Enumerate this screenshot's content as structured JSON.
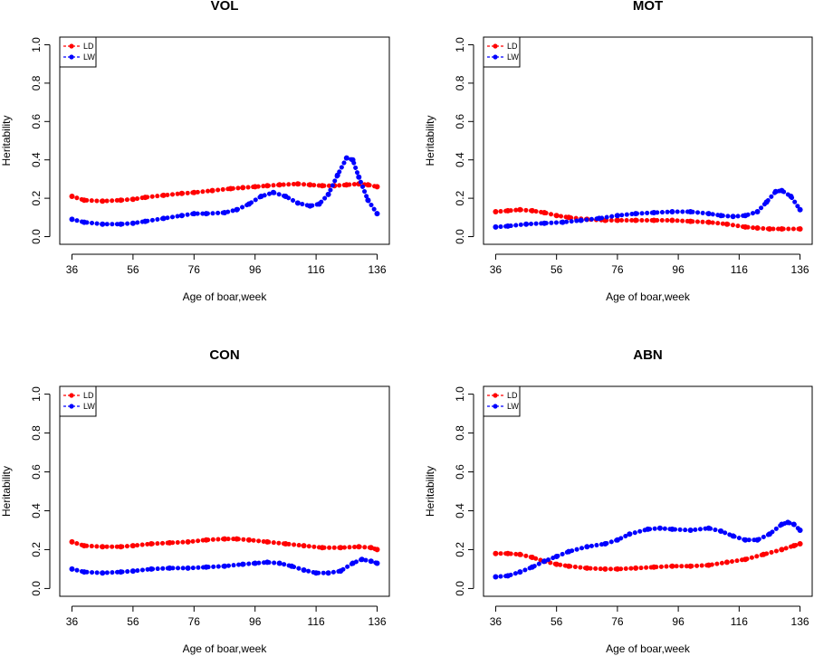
{
  "chart_data": [
    {
      "type": "line",
      "title": "VOL",
      "xlabel": "Age of boar,week",
      "ylabel": "Heritability",
      "xlim": [
        36,
        136
      ],
      "ylim": [
        0,
        1
      ],
      "xticks": [
        "36",
        "56",
        "76",
        "96",
        "116",
        "136"
      ],
      "yticks": [
        "0.0",
        "0.2",
        "0.4",
        "0.6",
        "0.8",
        "1.0"
      ],
      "legend": "top-left",
      "series": [
        {
          "name": "LD",
          "color": "#ff0000",
          "x": [
            36,
            40,
            46,
            52,
            56,
            60,
            66,
            72,
            76,
            82,
            88,
            92,
            96,
            100,
            104,
            110,
            114,
            118,
            122,
            126,
            130,
            133,
            136
          ],
          "y": [
            0.21,
            0.19,
            0.185,
            0.19,
            0.195,
            0.205,
            0.215,
            0.225,
            0.23,
            0.24,
            0.25,
            0.255,
            0.26,
            0.265,
            0.27,
            0.275,
            0.27,
            0.265,
            0.265,
            0.27,
            0.275,
            0.27,
            0.26
          ]
        },
        {
          "name": "LW",
          "color": "#0000ff",
          "x": [
            36,
            40,
            46,
            52,
            56,
            60,
            66,
            72,
            76,
            80,
            86,
            90,
            94,
            98,
            102,
            106,
            110,
            114,
            117,
            120,
            123,
            126,
            128,
            130,
            133,
            136
          ],
          "y": [
            0.09,
            0.075,
            0.065,
            0.065,
            0.07,
            0.08,
            0.095,
            0.11,
            0.12,
            0.12,
            0.125,
            0.14,
            0.17,
            0.21,
            0.23,
            0.21,
            0.175,
            0.16,
            0.17,
            0.22,
            0.32,
            0.41,
            0.4,
            0.31,
            0.19,
            0.12
          ]
        }
      ]
    },
    {
      "type": "line",
      "title": "MOT",
      "xlabel": "Age of boar,week",
      "ylabel": "Heritability",
      "xlim": [
        36,
        136
      ],
      "ylim": [
        0,
        1
      ],
      "xticks": [
        "36",
        "56",
        "76",
        "96",
        "116",
        "136"
      ],
      "yticks": [
        "0.0",
        "0.2",
        "0.4",
        "0.6",
        "0.8",
        "1.0"
      ],
      "legend": "top-left",
      "series": [
        {
          "name": "LD",
          "color": "#ff0000",
          "x": [
            36,
            40,
            44,
            48,
            52,
            56,
            60,
            66,
            72,
            76,
            82,
            88,
            94,
            100,
            106,
            112,
            118,
            122,
            126,
            130,
            136
          ],
          "y": [
            0.13,
            0.135,
            0.14,
            0.135,
            0.125,
            0.11,
            0.1,
            0.09,
            0.085,
            0.085,
            0.085,
            0.085,
            0.085,
            0.08,
            0.075,
            0.065,
            0.05,
            0.045,
            0.04,
            0.04,
            0.04
          ]
        },
        {
          "name": "LW",
          "color": "#0000ff",
          "x": [
            36,
            40,
            46,
            52,
            58,
            64,
            70,
            76,
            82,
            88,
            94,
            100,
            106,
            110,
            114,
            118,
            122,
            125,
            128,
            130,
            133,
            136
          ],
          "y": [
            0.05,
            0.055,
            0.065,
            0.07,
            0.075,
            0.085,
            0.095,
            0.11,
            0.12,
            0.125,
            0.13,
            0.13,
            0.12,
            0.11,
            0.105,
            0.11,
            0.13,
            0.18,
            0.235,
            0.24,
            0.21,
            0.14
          ]
        }
      ]
    },
    {
      "type": "line",
      "title": "CON",
      "xlabel": "Age of boar,week",
      "ylabel": "Heritability",
      "xlim": [
        36,
        136
      ],
      "ylim": [
        0,
        1
      ],
      "xticks": [
        "36",
        "56",
        "76",
        "96",
        "116",
        "136"
      ],
      "yticks": [
        "0.0",
        "0.2",
        "0.4",
        "0.6",
        "0.8",
        "1.0"
      ],
      "legend": "top-left",
      "series": [
        {
          "name": "LD",
          "color": "#ff0000",
          "x": [
            36,
            40,
            46,
            52,
            56,
            62,
            68,
            74,
            80,
            86,
            90,
            94,
            100,
            106,
            112,
            118,
            124,
            130,
            134,
            136
          ],
          "y": [
            0.24,
            0.22,
            0.215,
            0.215,
            0.22,
            0.23,
            0.235,
            0.24,
            0.25,
            0.255,
            0.255,
            0.25,
            0.24,
            0.23,
            0.22,
            0.21,
            0.21,
            0.215,
            0.21,
            0.2
          ]
        },
        {
          "name": "LW",
          "color": "#0000ff",
          "x": [
            36,
            40,
            46,
            52,
            56,
            62,
            68,
            74,
            80,
            86,
            92,
            96,
            100,
            104,
            108,
            112,
            116,
            120,
            124,
            128,
            131,
            134,
            136
          ],
          "y": [
            0.1,
            0.085,
            0.08,
            0.085,
            0.09,
            0.1,
            0.105,
            0.105,
            0.11,
            0.115,
            0.125,
            0.13,
            0.135,
            0.13,
            0.115,
            0.095,
            0.08,
            0.08,
            0.09,
            0.13,
            0.15,
            0.14,
            0.13
          ]
        }
      ]
    },
    {
      "type": "line",
      "title": "ABN",
      "xlabel": "Age of boar,week",
      "ylabel": "Heritability",
      "xlim": [
        36,
        136
      ],
      "ylim": [
        0,
        1
      ],
      "xticks": [
        "36",
        "56",
        "76",
        "96",
        "116",
        "136"
      ],
      "yticks": [
        "0.0",
        "0.2",
        "0.4",
        "0.6",
        "0.8",
        "1.0"
      ],
      "legend": "top-left",
      "series": [
        {
          "name": "LD",
          "color": "#ff0000",
          "x": [
            36,
            40,
            44,
            48,
            52,
            56,
            60,
            66,
            72,
            76,
            82,
            88,
            94,
            100,
            106,
            112,
            118,
            124,
            130,
            134,
            136
          ],
          "y": [
            0.18,
            0.18,
            0.175,
            0.16,
            0.14,
            0.125,
            0.115,
            0.105,
            0.1,
            0.1,
            0.105,
            0.11,
            0.115,
            0.115,
            0.12,
            0.135,
            0.15,
            0.175,
            0.2,
            0.22,
            0.23
          ]
        },
        {
          "name": "LW",
          "color": "#0000ff",
          "x": [
            36,
            40,
            44,
            48,
            52,
            56,
            60,
            66,
            72,
            76,
            80,
            86,
            90,
            94,
            100,
            106,
            110,
            114,
            118,
            122,
            126,
            130,
            132,
            134,
            136
          ],
          "y": [
            0.06,
            0.065,
            0.085,
            0.11,
            0.14,
            0.165,
            0.19,
            0.215,
            0.23,
            0.25,
            0.28,
            0.305,
            0.31,
            0.305,
            0.3,
            0.31,
            0.295,
            0.27,
            0.25,
            0.25,
            0.28,
            0.33,
            0.34,
            0.33,
            0.3
          ]
        }
      ]
    }
  ]
}
